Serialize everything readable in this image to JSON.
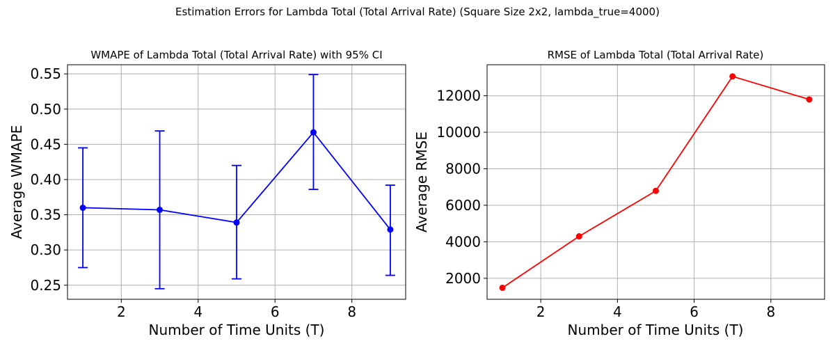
{
  "figure": {
    "suptitle": "Estimation Errors for Lambda Total (Total Arrival Rate) (Square Size 2x2, lambda_true=4000)"
  },
  "chart_data": [
    {
      "type": "line",
      "title": "WMAPE of Lambda Total (Total Arrival Rate) with 95% CI",
      "xlabel": "Number of Time Units (T)",
      "ylabel": "Average WMAPE",
      "color": "#0000ff",
      "xlim": [
        0.6,
        9.4
      ],
      "ylim": [
        0.23,
        0.563
      ],
      "xticks": [
        2,
        4,
        6,
        8
      ],
      "xtick_labels": [
        "2",
        "4",
        "6",
        "8"
      ],
      "yticks": [
        0.25,
        0.3,
        0.35,
        0.4,
        0.45,
        0.5,
        0.55
      ],
      "ytick_labels": [
        "0.25",
        "0.30",
        "0.35",
        "0.40",
        "0.45",
        "0.50",
        "0.55"
      ],
      "grid": true,
      "x": [
        1,
        3,
        5,
        7,
        9
      ],
      "y": [
        0.36,
        0.357,
        0.339,
        0.467,
        0.329
      ],
      "ci_lower": [
        0.275,
        0.245,
        0.259,
        0.386,
        0.264
      ],
      "ci_upper": [
        0.445,
        0.469,
        0.42,
        0.549,
        0.392
      ]
    },
    {
      "type": "line",
      "title": "RMSE of Lambda Total (Total Arrival Rate)",
      "xlabel": "Number of Time Units (T)",
      "ylabel": "Average RMSE",
      "color": "#ff0000",
      "xlim": [
        0.6,
        9.4
      ],
      "ylim": [
        850,
        13700
      ],
      "xticks": [
        2,
        4,
        6,
        8
      ],
      "xtick_labels": [
        "2",
        "4",
        "6",
        "8"
      ],
      "yticks": [
        2000,
        4000,
        6000,
        8000,
        10000,
        12000
      ],
      "ytick_labels": [
        "2000",
        "4000",
        "6000",
        "8000",
        "10000",
        "12000"
      ],
      "grid": true,
      "x": [
        1,
        3,
        5,
        7,
        9
      ],
      "y": [
        1480,
        4300,
        6790,
        13060,
        11800
      ]
    }
  ]
}
